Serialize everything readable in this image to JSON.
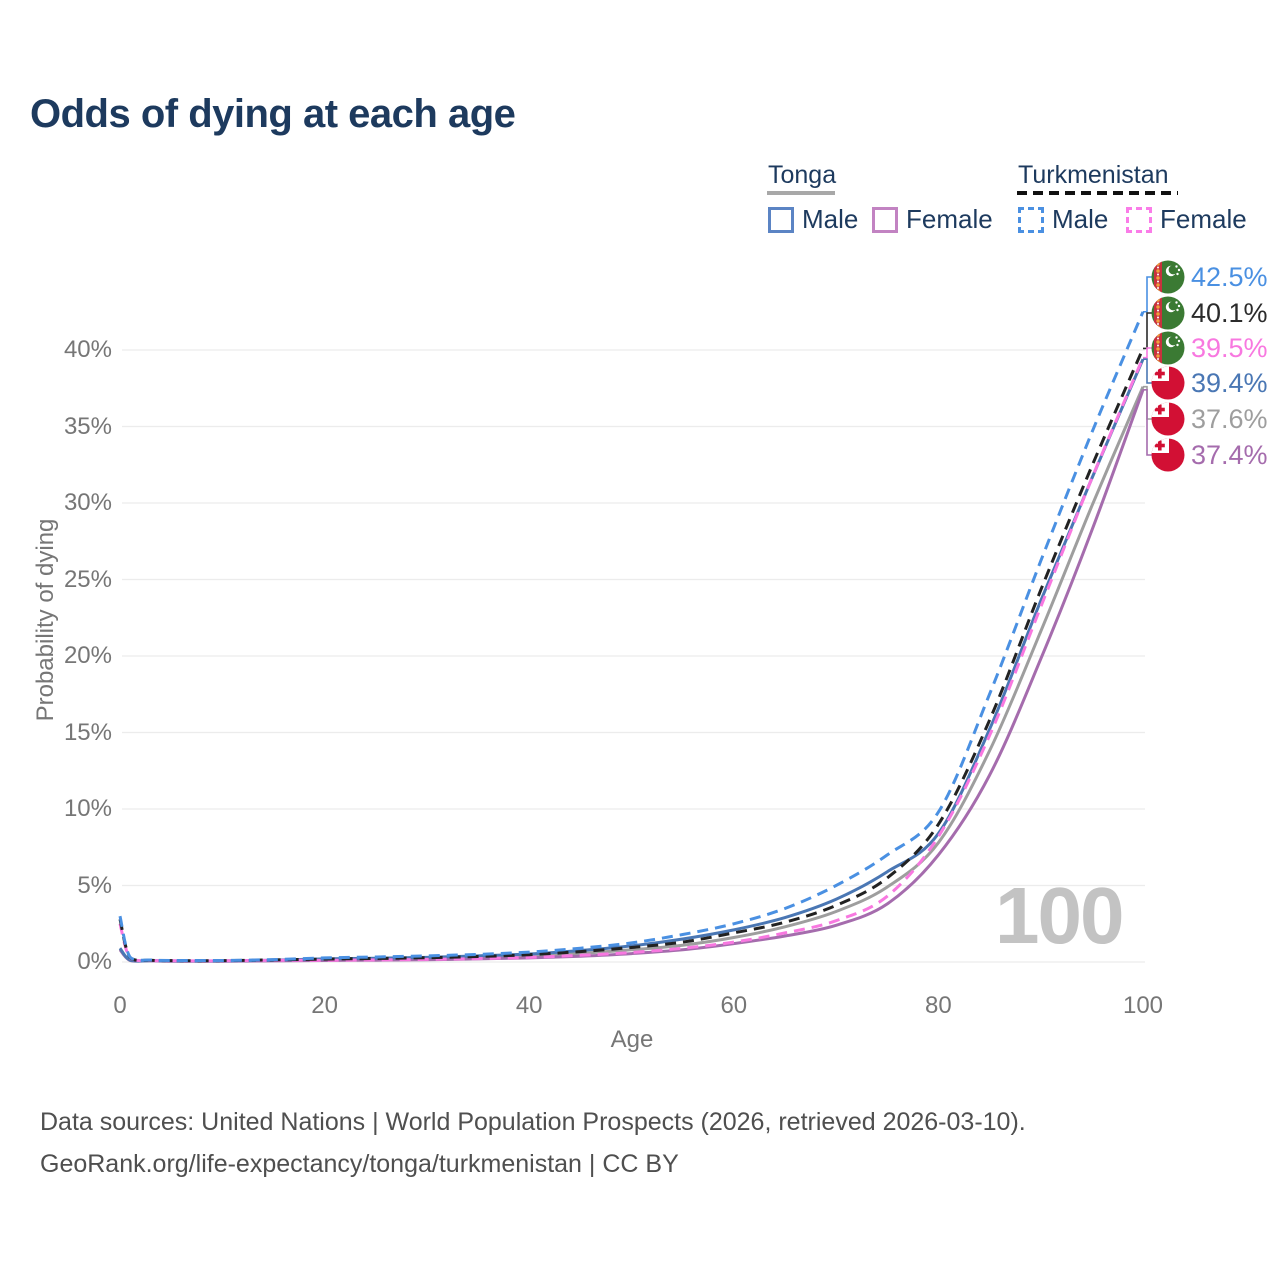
{
  "title": "Odds of dying at each age",
  "legend": {
    "groups": [
      {
        "name": "Tonga",
        "line_style": "solid",
        "swatch_color": "#a8a8a8",
        "items": [
          {
            "label": "Male",
            "color": "#5b84c4",
            "dashed": false
          },
          {
            "label": "Female",
            "color": "#c283c2",
            "dashed": false
          }
        ]
      },
      {
        "name": "Turkmenistan",
        "line_style": "dashed",
        "swatch_color": "#111111",
        "items": [
          {
            "label": "Male",
            "color": "#4a90e2",
            "dashed": true
          },
          {
            "label": "Female",
            "color": "#fa7ce8",
            "dashed": true
          }
        ]
      }
    ]
  },
  "chart_data": {
    "type": "line",
    "title": "Odds of dying at each age",
    "xlabel": "Age",
    "ylabel": "Probability of dying",
    "xlim": [
      0,
      100
    ],
    "ylim": [
      0,
      44
    ],
    "grid": "horizontal",
    "x_ticks": [
      0,
      20,
      40,
      60,
      80,
      100
    ],
    "y_ticks_percent": [
      0,
      5,
      10,
      15,
      20,
      25,
      30,
      35,
      40
    ],
    "ages": [
      0,
      1,
      3,
      5,
      10,
      15,
      20,
      25,
      30,
      35,
      40,
      45,
      50,
      55,
      60,
      65,
      70,
      75,
      80,
      85,
      90,
      95,
      100
    ],
    "series": [
      {
        "name": "Tonga Both sexes",
        "country": "Tonga",
        "sex": "All",
        "color": "#9e9e9e",
        "dashed": false,
        "values": [
          0.85,
          0.11,
          0.085,
          0.06,
          0.06,
          0.1,
          0.16,
          0.19,
          0.23,
          0.3,
          0.4,
          0.56,
          0.8,
          1.1,
          1.6,
          2.3,
          3.3,
          4.9,
          7.8,
          13.8,
          21.6,
          29.8,
          37.6
        ],
        "end_value_pct": 37.6
      },
      {
        "name": "Tonga Female",
        "country": "Tonga",
        "sex": "Female",
        "color": "#a56cad",
        "dashed": false,
        "values": [
          0.8,
          0.1,
          0.08,
          0.05,
          0.05,
          0.07,
          0.1,
          0.12,
          0.15,
          0.2,
          0.27,
          0.38,
          0.55,
          0.8,
          1.2,
          1.7,
          2.4,
          3.8,
          7.0,
          12.2,
          19.8,
          28.2,
          37.4
        ],
        "end_value_pct": 37.4
      },
      {
        "name": "Tonga Male",
        "country": "Tonga",
        "sex": "Male",
        "color": "#4a77b4",
        "dashed": false,
        "values": [
          0.9,
          0.12,
          0.09,
          0.07,
          0.07,
          0.12,
          0.2,
          0.25,
          0.3,
          0.4,
          0.52,
          0.75,
          1.05,
          1.5,
          2.1,
          2.9,
          4.1,
          5.9,
          8.4,
          15.2,
          23.6,
          31.6,
          39.4
        ],
        "end_value_pct": 39.4
      },
      {
        "name": "Turkmenistan Female",
        "country": "Turkmenistan",
        "sex": "Female",
        "color": "#f878e0",
        "dashed": true,
        "values": [
          2.5,
          0.25,
          0.1,
          0.08,
          0.08,
          0.11,
          0.11,
          0.14,
          0.17,
          0.22,
          0.3,
          0.44,
          0.62,
          0.9,
          1.3,
          1.9,
          2.7,
          4.3,
          8.2,
          14.8,
          23.2,
          31.6,
          39.5
        ],
        "end_value_pct": 39.5
      },
      {
        "name": "Turkmenistan Both sexes",
        "country": "Turkmenistan",
        "sex": "All",
        "color": "#222222",
        "dashed": true,
        "values": [
          2.8,
          0.28,
          0.11,
          0.09,
          0.09,
          0.14,
          0.19,
          0.23,
          0.28,
          0.36,
          0.48,
          0.68,
          0.95,
          1.3,
          1.9,
          2.6,
          3.7,
          5.5,
          9.0,
          15.8,
          24.3,
          32.4,
          40.1
        ],
        "end_value_pct": 40.1
      },
      {
        "name": "Turkmenistan Male",
        "country": "Turkmenistan",
        "sex": "Male",
        "color": "#4a90e2",
        "dashed": true,
        "values": [
          3.0,
          0.3,
          0.13,
          0.1,
          0.1,
          0.16,
          0.27,
          0.33,
          0.4,
          0.5,
          0.65,
          0.9,
          1.25,
          1.8,
          2.5,
          3.5,
          5.0,
          7.0,
          9.8,
          17.5,
          26.2,
          34.6,
          42.5
        ],
        "end_value_pct": 42.5
      }
    ]
  },
  "end_labels": [
    {
      "value": "42.5%",
      "color": "#4a90e2",
      "flag": "turkmenistan",
      "series": "Turkmenistan Male"
    },
    {
      "value": "40.1%",
      "color": "#2b2b2b",
      "flag": "turkmenistan",
      "series": "Turkmenistan Both sexes"
    },
    {
      "value": "39.5%",
      "color": "#f878e0",
      "flag": "turkmenistan",
      "series": "Turkmenistan Female"
    },
    {
      "value": "39.4%",
      "color": "#4a77b4",
      "flag": "tonga",
      "series": "Tonga Male"
    },
    {
      "value": "37.6%",
      "color": "#9e9e9e",
      "flag": "tonga",
      "series": "Tonga Both sexes"
    },
    {
      "value": "37.4%",
      "color": "#a56cad",
      "flag": "tonga",
      "series": "Tonga Female"
    }
  ],
  "watermark": "100",
  "footer": {
    "line1": "Data sources: United Nations | World Population Prospects (2026, retrieved 2026-03-10).",
    "line2": "GeoRank.org/life-expectancy/tonga/turkmenistan | CC BY"
  }
}
